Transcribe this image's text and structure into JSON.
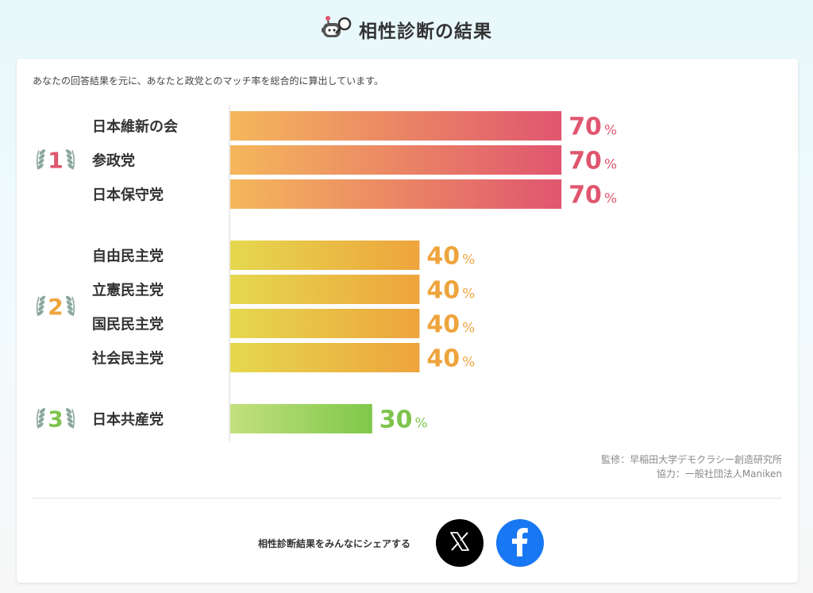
{
  "header": {
    "title": "相性診断の結果"
  },
  "intro": "あなたの回答結果を元に、あなたと政党とのマッチ率を総合的に算出しています。",
  "chart_data": {
    "type": "bar",
    "orientation": "horizontal",
    "unit": "%",
    "xlim": [
      0,
      100
    ],
    "ranks": [
      {
        "rank": "1",
        "color": "#e0566f",
        "gradient": [
          "#f5b75b",
          "#e0566f"
        ]
      },
      {
        "rank": "2",
        "color": "#eea43c",
        "gradient": [
          "#e5d84f",
          "#eea43c"
        ]
      },
      {
        "rank": "3",
        "color": "#7fc44d",
        "gradient": [
          "#c3e07e",
          "#7fc84a"
        ]
      }
    ],
    "categories": [
      "日本維新の会",
      "参政党",
      "日本保守党",
      "自由民主党",
      "立憲民主党",
      "国民民主党",
      "社会民主党",
      "日本共産党"
    ],
    "values": [
      70,
      70,
      70,
      40,
      40,
      40,
      40,
      30
    ],
    "rank_of": [
      1,
      1,
      1,
      2,
      2,
      2,
      2,
      3
    ]
  },
  "credits": {
    "supervision": "監修：早稲田大学デモクラシー創造研究所",
    "cooperation": "協力：一般社団法人Maniken"
  },
  "share": {
    "label": "相性診断結果をみんなにシェアする",
    "x_icon": "x-logo-icon",
    "facebook_icon": "facebook-logo-icon"
  }
}
